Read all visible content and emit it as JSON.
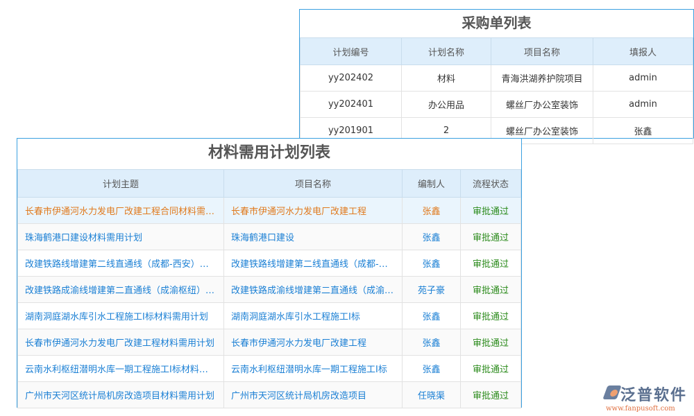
{
  "purchase": {
    "title": "采购单列表",
    "headers": [
      "计划编号",
      "计划名称",
      "项目名称",
      "填报人"
    ],
    "rows": [
      [
        "yy202402",
        "材料",
        "青海洪湖养护院项目",
        "admin"
      ],
      [
        "yy202401",
        "办公用品",
        "螺丝厂办公室装饰",
        "admin"
      ],
      [
        "yy201901",
        "2",
        "螺丝厂办公室装饰",
        "张鑫"
      ]
    ]
  },
  "plan": {
    "title": "材料需用计划列表",
    "headers": [
      "计划主题",
      "项目名称",
      "编制人",
      "流程状态"
    ],
    "rows": [
      [
        "长春市伊通河水力发电厂改建工程合同材料需用计划",
        "长春市伊通河水力发电厂改建工程",
        "张鑫",
        "审批通过"
      ],
      [
        "珠海鹤港口建设材料需用计划",
        "珠海鹤港口建设",
        "张鑫",
        "审批通过"
      ],
      [
        "改建铁路线增建第二线直通线（成都-西安）材料需用计划",
        "改建铁路线增建第二线直通线（成都-西安）",
        "张鑫",
        "审批通过"
      ],
      [
        "改建铁路成渝线增建第二直通线（成渝枢纽）材料需用计划",
        "改建铁路成渝线增建第二直通线（成渝枢纽）",
        "苑子豪",
        "审批通过"
      ],
      [
        "湖南洞庭湖水库引水工程施工I标材料需用计划",
        "湖南洞庭湖水库引水工程施工I标",
        "张鑫",
        "审批通过"
      ],
      [
        "长春市伊通河水力发电厂改建工程材料需用计划",
        "长春市伊通河水力发电厂改建工程",
        "张鑫",
        "审批通过"
      ],
      [
        "云南水利枢纽潜明水库一期工程施工I标材料需用计划",
        "云南水利枢纽潜明水库一期工程施工I标",
        "张鑫",
        "审批通过"
      ],
      [
        "广州市天河区统计局机房改造项目材料需用计划",
        "广州市天河区统计局机房改造项目",
        "任晓渠",
        "审批通过"
      ]
    ]
  },
  "logo": {
    "name": "泛普软件",
    "url": "www.fanpusoft.com"
  },
  "colors": {
    "border": "#3aa0e0",
    "header_bg": "#deeefb",
    "link": "#1a7fd4",
    "highlight": "#e07a1e",
    "approved": "#2a8a1a"
  }
}
